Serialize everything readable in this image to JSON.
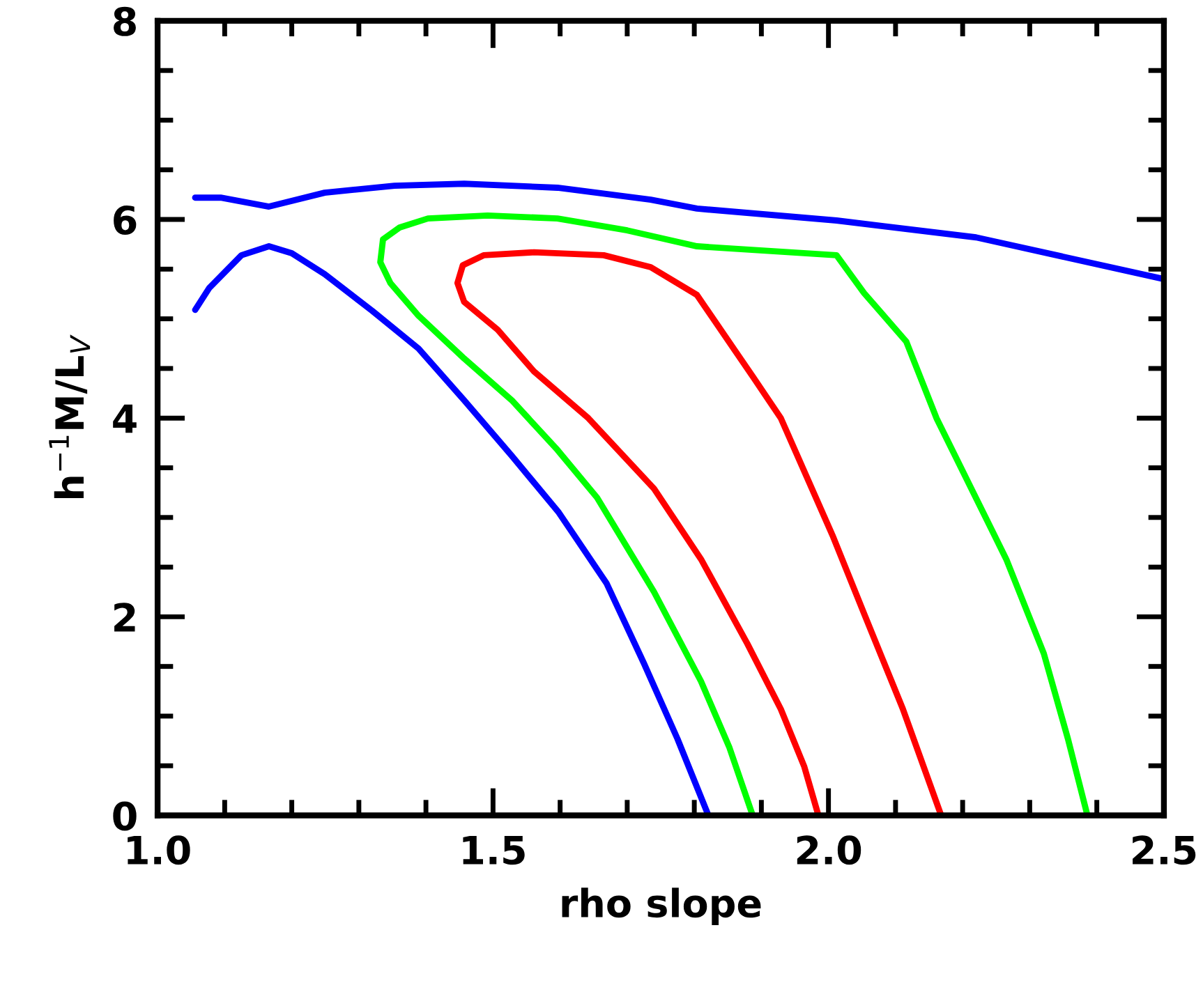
{
  "chart_data": {
    "type": "line",
    "xlabel": "rho slope",
    "ylabel": "h$^{−1}$M/L$_{V}$",
    "xlim": [
      1.0,
      2.5
    ],
    "ylim": [
      0,
      8
    ],
    "xticks": [
      {
        "value": 1.0,
        "label": "1.0"
      },
      {
        "value": 1.1,
        "label": null
      },
      {
        "value": 1.2,
        "label": null
      },
      {
        "value": 1.3,
        "label": null
      },
      {
        "value": 1.4,
        "label": null
      },
      {
        "value": 1.5,
        "label": "1.5"
      },
      {
        "value": 1.6,
        "label": null
      },
      {
        "value": 1.7,
        "label": null
      },
      {
        "value": 1.8,
        "label": null
      },
      {
        "value": 1.9,
        "label": null
      },
      {
        "value": 2.0,
        "label": "2.0"
      },
      {
        "value": 2.1,
        "label": null
      },
      {
        "value": 2.2,
        "label": null
      },
      {
        "value": 2.3,
        "label": null
      },
      {
        "value": 2.4,
        "label": null
      },
      {
        "value": 2.5,
        "label": "2.5"
      }
    ],
    "yticks": [
      0,
      {
        "value": 0.5,
        "label": null
      },
      {
        "value": 1,
        "label": null
      },
      {
        "value": 1.5,
        "label": null
      },
      2,
      {
        "value": 2.5,
        "label": null
      },
      {
        "value": 3,
        "label": null
      },
      {
        "value": 3.5,
        "label": null
      },
      4,
      {
        "value": 4.5,
        "label": null
      },
      {
        "value": 5,
        "label": null
      },
      {
        "value": 5.5,
        "label": null
      },
      6,
      {
        "value": 6.5,
        "label": null
      },
      {
        "value": 7,
        "label": null
      },
      {
        "value": 7.5,
        "label": null
      },
      8
    ],
    "grid": false,
    "legend": false,
    "marker": "none",
    "line_style": "solid",
    "series": [
      {
        "color": "#0000ff",
        "x": [
          1.056,
          1.094,
          1.166,
          1.249,
          1.353,
          1.457,
          1.596,
          1.735,
          1.804,
          2.012,
          2.22,
          2.5
        ],
        "values": [
          6.22,
          6.22,
          6.13,
          6.27,
          6.34,
          6.36,
          6.32,
          6.2,
          6.11,
          5.99,
          5.82,
          5.4
        ]
      },
      {
        "color": "#0000ff",
        "x": [
          1.821,
          1.775,
          1.725,
          1.669,
          1.598,
          1.528,
          1.457,
          1.389,
          1.32,
          1.249,
          1.2,
          1.166,
          1.125,
          1.077,
          1.056
        ],
        "values": [
          0,
          0.77,
          1.53,
          2.34,
          3.05,
          3.62,
          4.18,
          4.7,
          5.08,
          5.45,
          5.66,
          5.73,
          5.64,
          5.31,
          5.09
        ]
      },
      {
        "color": "#00ff00",
        "x": [
          1.887,
          1.852,
          1.81,
          1.74,
          1.655,
          1.596,
          1.528,
          1.457,
          1.389,
          1.347,
          1.332,
          1.336,
          1.361,
          1.403,
          1.492,
          1.596,
          1.7,
          1.804,
          2.012,
          2.053,
          2.116,
          2.161,
          2.265,
          2.321,
          2.357,
          2.386
        ],
        "values": [
          0,
          0.69,
          1.35,
          2.25,
          3.2,
          3.68,
          4.18,
          4.6,
          5.03,
          5.36,
          5.57,
          5.8,
          5.92,
          6.01,
          6.04,
          6.01,
          5.89,
          5.73,
          5.64,
          5.26,
          4.77,
          4.0,
          2.58,
          1.63,
          0.77,
          0
        ]
      },
      {
        "color": "#ff0000",
        "x": [
          1.985,
          1.964,
          1.929,
          1.879,
          1.81,
          1.74,
          1.642,
          1.561,
          1.507,
          1.457,
          1.447,
          1.455,
          1.486,
          1.561,
          1.665,
          1.735,
          1.804,
          1.887,
          1.929,
          2.006,
          2.055,
          2.111,
          2.168
        ],
        "values": [
          0,
          0.49,
          1.07,
          1.73,
          2.58,
          3.29,
          4.0,
          4.47,
          4.89,
          5.17,
          5.36,
          5.54,
          5.64,
          5.67,
          5.64,
          5.52,
          5.24,
          4.42,
          4.0,
          2.82,
          2.0,
          1.07,
          0
        ]
      }
    ]
  }
}
